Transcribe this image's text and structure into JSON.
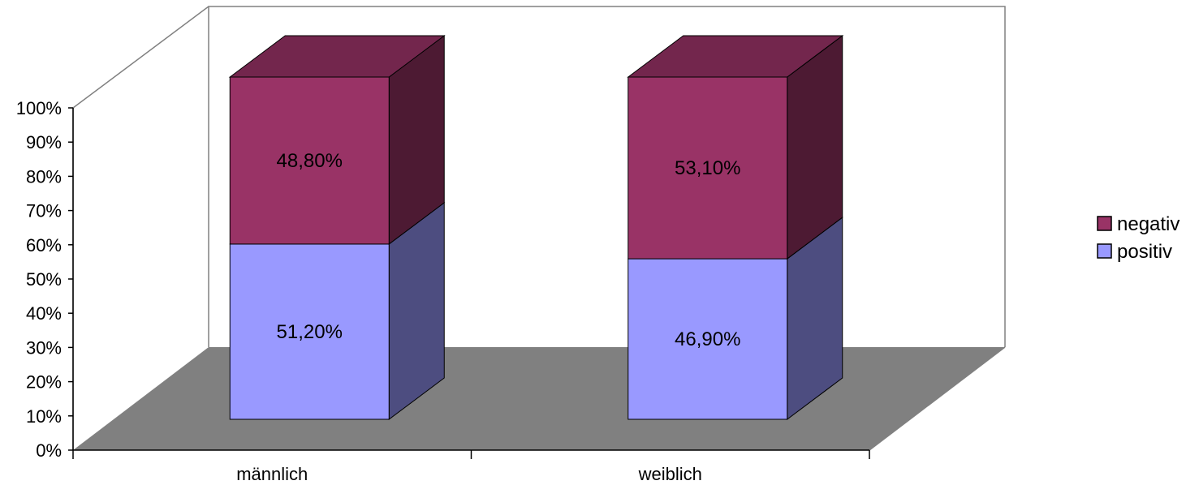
{
  "chart_data": {
    "type": "bar",
    "stacked": true,
    "percent_stacked": true,
    "three_d": true,
    "categories": [
      "männlich",
      "weiblich"
    ],
    "series": [
      {
        "name": "positiv",
        "values": [
          51.2,
          46.9
        ],
        "labels": [
          "51,20%",
          "46,90%"
        ],
        "color": "#9999FF",
        "side_color": "#4D4D80"
      },
      {
        "name": "negativ",
        "values": [
          48.8,
          53.1
        ],
        "labels": [
          "48,80%",
          "53,10%"
        ],
        "color": "#993366",
        "side_color": "#4D1A33",
        "top_color": "#73264D"
      }
    ],
    "y_ticks": [
      "0%",
      "10%",
      "20%",
      "30%",
      "40%",
      "50%",
      "60%",
      "70%",
      "80%",
      "90%",
      "100%"
    ],
    "ylim": [
      0,
      100
    ],
    "grid": false,
    "legend_position": "right",
    "legend": [
      "negativ",
      "positiv"
    ],
    "floor_color": "#808080"
  }
}
